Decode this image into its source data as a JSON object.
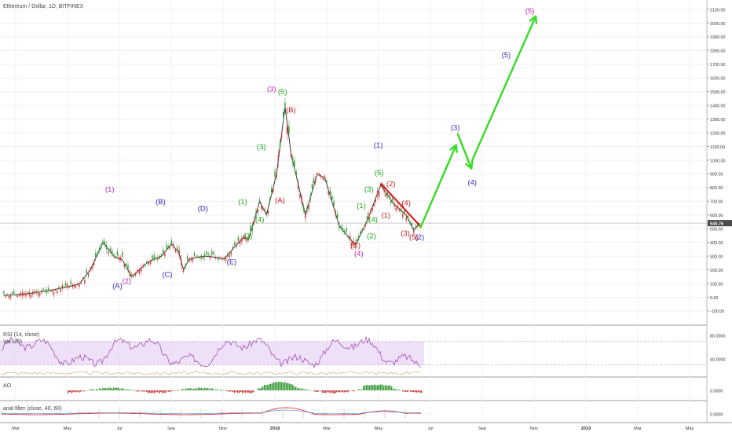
{
  "header": {
    "title": "Ethereum / Dollar, 1D, BITFINEX"
  },
  "colors": {
    "candle_up": "#3a9a3a",
    "candle_down": "#c43c3c",
    "price": "#222222",
    "rsi_line": "#9b3ea8",
    "rsi_band": "#e9d8f5",
    "arrow": "#33dd22",
    "trendline": "#e01010",
    "wave_magenta": "#c02bb8",
    "wave_green": "#1ca61c",
    "wave_blue": "#3a2bb5",
    "wave_red": "#c42020",
    "grid": "#f0f0f0"
  },
  "price_axis": {
    "ticks": [
      "2100.00",
      "2000.00",
      "1900.00",
      "1800.00",
      "1700.00",
      "1600.00",
      "1500.00",
      "1400.00",
      "1300.00",
      "1200.00",
      "1100.00",
      "1000.00",
      "900.00",
      "800.00",
      "700.00",
      "600.00",
      "500.00",
      "400.00",
      "300.00",
      "200.00",
      "100.00",
      "0.00",
      "-100.00"
    ],
    "current_price": "540.76"
  },
  "time_axis": {
    "labels": [
      "Mar",
      "May",
      "Jul",
      "Sep",
      "Nov",
      "2018",
      "Mar",
      "May",
      "Jul",
      "Sep",
      "Nov",
      "2019",
      "Mar",
      "May"
    ]
  },
  "panels": {
    "rsi": {
      "label": "RSI (14, close)",
      "sublabel": "Vol (20)",
      "ticks": [
        "80.0000",
        "40.0000"
      ]
    },
    "ao": {
      "label": "AO",
      "ticks": [
        "0.0000"
      ]
    },
    "filter": {
      "label": "anal filter (close, 40, 60)",
      "ticks": [
        "0.0000"
      ]
    }
  },
  "chart_data": {
    "type": "line",
    "title": "Ethereum / Dollar, 1D, BITFINEX",
    "ylim": [
      -150,
      2150
    ],
    "price_series": [
      {
        "date": "2017-02-15",
        "price": 13
      },
      {
        "date": "2017-03-15",
        "price": 25
      },
      {
        "date": "2017-04-15",
        "price": 55
      },
      {
        "date": "2017-05-15",
        "price": 95
      },
      {
        "date": "2017-05-28",
        "price": 200
      },
      {
        "date": "2017-06-12",
        "price": 400
      },
      {
        "date": "2017-06-25",
        "price": 300
      },
      {
        "date": "2017-07-05",
        "price": 270
      },
      {
        "date": "2017-07-16",
        "price": 150
      },
      {
        "date": "2017-07-25",
        "price": 200
      },
      {
        "date": "2017-08-05",
        "price": 260
      },
      {
        "date": "2017-08-20",
        "price": 300
      },
      {
        "date": "2017-09-01",
        "price": 390
      },
      {
        "date": "2017-09-10",
        "price": 320
      },
      {
        "date": "2017-09-15",
        "price": 200
      },
      {
        "date": "2017-09-22",
        "price": 280
      },
      {
        "date": "2017-10-10",
        "price": 300
      },
      {
        "date": "2017-10-25",
        "price": 290
      },
      {
        "date": "2017-11-02",
        "price": 280
      },
      {
        "date": "2017-11-25",
        "price": 440
      },
      {
        "date": "2017-12-01",
        "price": 420
      },
      {
        "date": "2017-12-14",
        "price": 700
      },
      {
        "date": "2017-12-22",
        "price": 600
      },
      {
        "date": "2018-01-03",
        "price": 900
      },
      {
        "date": "2018-01-13",
        "price": 1390
      },
      {
        "date": "2018-01-20",
        "price": 1050
      },
      {
        "date": "2018-02-06",
        "price": 600
      },
      {
        "date": "2018-02-20",
        "price": 900
      },
      {
        "date": "2018-03-01",
        "price": 870
      },
      {
        "date": "2018-03-18",
        "price": 520
      },
      {
        "date": "2018-04-06",
        "price": 380
      },
      {
        "date": "2018-04-20",
        "price": 560
      },
      {
        "date": "2018-05-06",
        "price": 820
      },
      {
        "date": "2018-05-20",
        "price": 690
      },
      {
        "date": "2018-06-05",
        "price": 600
      },
      {
        "date": "2018-06-14",
        "price": 490
      },
      {
        "date": "2018-06-21",
        "price": 540
      }
    ],
    "projection_path": [
      {
        "date": "2018-06-22",
        "price": 510
      },
      {
        "date": "2018-08-03",
        "price": 1110
      },
      {
        "date": "2018-08-05",
        "price": 1190
      },
      {
        "date": "2018-08-21",
        "price": 940
      },
      {
        "date": "2018-08-22",
        "price": 1000
      },
      {
        "date": "2018-11-05",
        "price": 2050
      }
    ],
    "trendline": [
      {
        "date": "2018-05-06",
        "price": 830
      },
      {
        "date": "2018-06-23",
        "price": 510
      }
    ],
    "wave_labels": [
      {
        "text": "(1)",
        "color": "magenta",
        "date": "2017-06-20",
        "price": 770
      },
      {
        "text": "(A)",
        "color": "blue",
        "date": "2017-06-29",
        "price": 65
      },
      {
        "text": "(2)",
        "color": "magenta",
        "date": "2017-07-10",
        "price": 100
      },
      {
        "text": "(B)",
        "color": "blue",
        "date": "2017-08-19",
        "price": 680
      },
      {
        "text": "(C)",
        "color": "blue",
        "date": "2017-08-27",
        "price": 150
      },
      {
        "text": "(D)",
        "color": "blue",
        "date": "2017-10-08",
        "price": 630
      },
      {
        "text": "(E)",
        "color": "blue",
        "date": "2017-11-11",
        "price": 240
      },
      {
        "text": "(1)",
        "color": "green",
        "date": "2017-11-24",
        "price": 680
      },
      {
        "text": "(2)",
        "color": "green",
        "date": "2017-11-30",
        "price": 430
      },
      {
        "text": "(4)",
        "color": "green",
        "date": "2017-12-14",
        "price": 550
      },
      {
        "text": "(3)",
        "color": "green",
        "date": "2017-12-16",
        "price": 1080
      },
      {
        "text": "(3)",
        "color": "magenta",
        "date": "2017-12-28",
        "price": 1500
      },
      {
        "text": "(A)",
        "color": "red",
        "date": "2018-01-07",
        "price": 690
      },
      {
        "text": "(5)",
        "color": "green",
        "date": "2018-01-10",
        "price": 1480
      },
      {
        "text": "(B)",
        "color": "red",
        "date": "2018-01-20",
        "price": 1350
      },
      {
        "text": "(C)",
        "color": "red",
        "date": "2018-04-06",
        "price": 360
      },
      {
        "text": "(4)",
        "color": "magenta",
        "date": "2018-04-10",
        "price": 300
      },
      {
        "text": "(1)",
        "color": "green",
        "date": "2018-04-13",
        "price": 650
      },
      {
        "text": "(2)",
        "color": "green",
        "date": "2018-04-25",
        "price": 430
      },
      {
        "text": "(4)",
        "color": "green",
        "date": "2018-04-27",
        "price": 550
      },
      {
        "text": "(3)",
        "color": "green",
        "date": "2018-04-22",
        "price": 770
      },
      {
        "text": "(1)",
        "color": "blue",
        "date": "2018-05-03",
        "price": 1090
      },
      {
        "text": "(5)",
        "color": "green",
        "date": "2018-05-04",
        "price": 890
      },
      {
        "text": "(1)",
        "color": "red",
        "date": "2018-05-12",
        "price": 580
      },
      {
        "text": "(2)",
        "color": "red",
        "date": "2018-05-18",
        "price": 810
      },
      {
        "text": "(3)",
        "color": "red",
        "date": "2018-06-04",
        "price": 450
      },
      {
        "text": "(4)",
        "color": "red",
        "date": "2018-06-05",
        "price": 670
      },
      {
        "text": "(5)",
        "color": "red",
        "date": "2018-06-14",
        "price": 420
      },
      {
        "text": "(2)",
        "color": "blue",
        "date": "2018-06-21",
        "price": 420
      },
      {
        "text": "(3)",
        "color": "blue",
        "date": "2018-08-02",
        "price": 1220
      },
      {
        "text": "(4)",
        "color": "blue",
        "date": "2018-08-22",
        "price": 820
      },
      {
        "text": "(5)",
        "color": "blue",
        "date": "2018-10-01",
        "price": 1750
      },
      {
        "text": "(5)",
        "color": "magenta",
        "date": "2018-10-29",
        "price": 2070
      }
    ]
  }
}
